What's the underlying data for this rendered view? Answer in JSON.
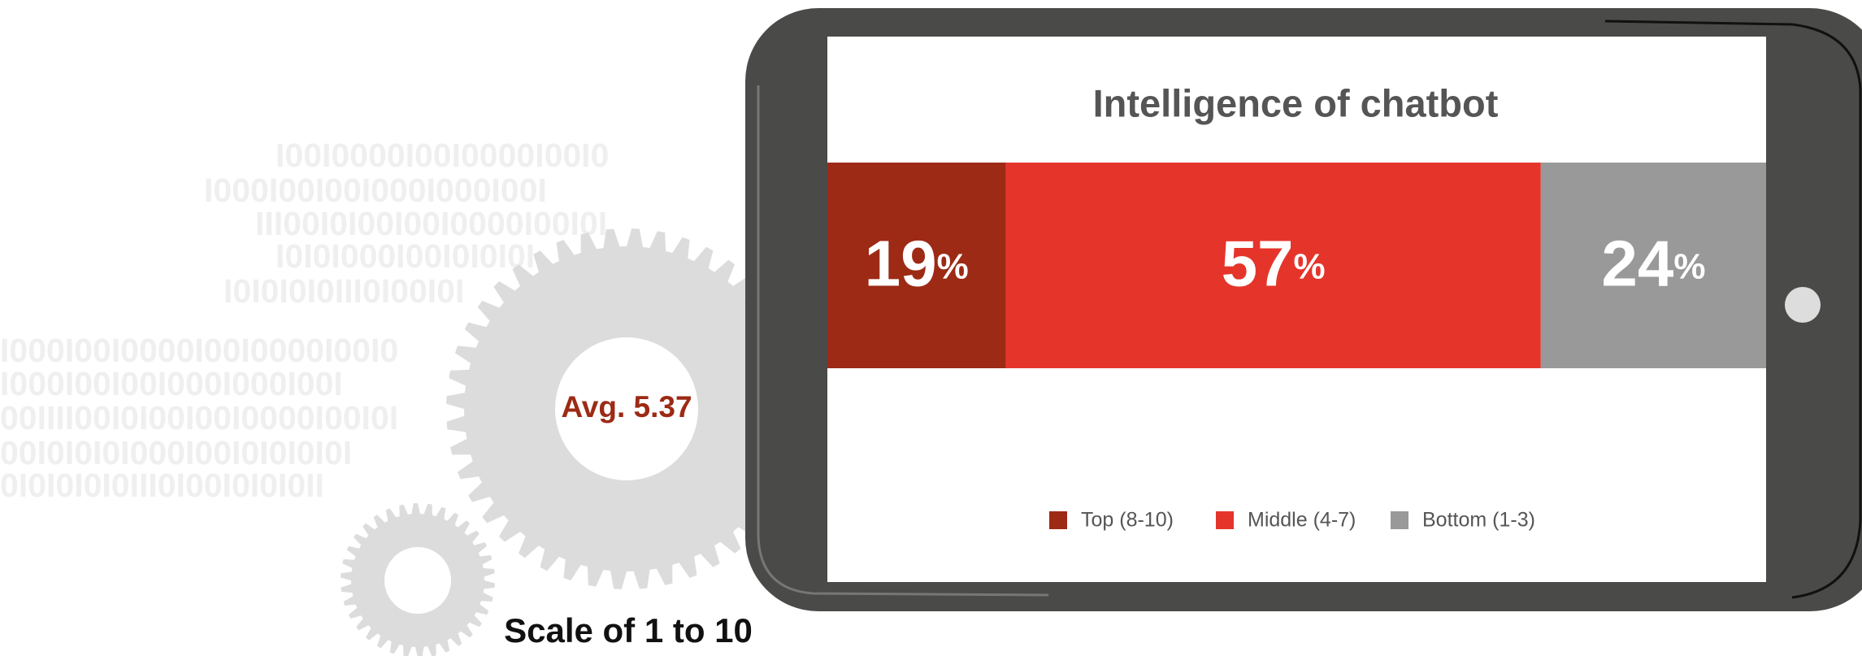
{
  "chart_data": {
    "type": "stacked_bar",
    "orientation": "horizontal",
    "title": "Intelligence of chatbot",
    "xlim": [
      0,
      100
    ],
    "series": [
      {
        "name": "Top (8-10)",
        "color": "#9c2a15",
        "values": [
          19
        ],
        "value_labels": [
          "19%"
        ]
      },
      {
        "name": "Middle (4-7)",
        "color": "#e5352b",
        "values": [
          57
        ],
        "value_labels": [
          "57%"
        ]
      },
      {
        "name": "Bottom (1-3)",
        "color": "#999999",
        "values": [
          24
        ],
        "value_labels": [
          "24%"
        ]
      }
    ],
    "legend": "bottom",
    "annotations": [
      "Avg. 5.37",
      "Scale of 1 to 10"
    ]
  },
  "background_text": [
    "I00I0000I00I0000I00I0",
    "I000I00I00I000I000I00I",
    "III00I0I00I00I0000I00I0I",
    "I0I0I000I00I0I0I0I",
    "I0I0I0I0III0I00I0I",
    "I000I00I0000I00I0000I00I0",
    "I000I00I00I000I000I00I",
    "00IIII00I0I00I00I0000I00I0I",
    "00I0I0I0I000I00I0I0I0I0I",
    "0I0I0I0I0III0I00I0I0I0II"
  ]
}
